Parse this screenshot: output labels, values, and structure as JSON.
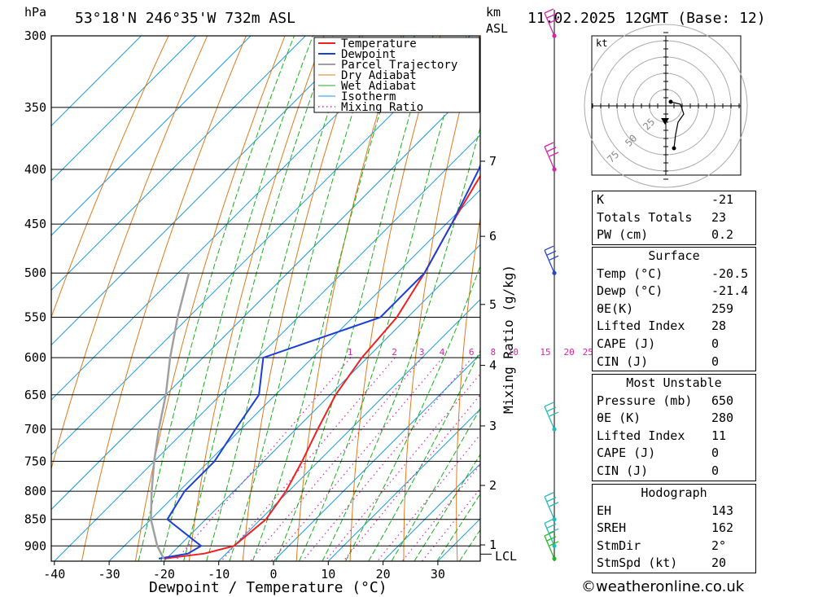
{
  "header": {
    "unit_hpa": "hPa",
    "location": "53°18'N 246°35'W 732m ASL",
    "unit_km": "km",
    "unit_asl": "ASL",
    "date": "11.02.2025 12GMT (Base: 12)"
  },
  "chart_data": {
    "type": "line",
    "subtype": "skew-T log-P sounding",
    "xlabel": "Dewpoint / Temperature (°C)",
    "ylabel_right": "Mixing Ratio (g/kg)",
    "x_ticks": [
      -40,
      -30,
      -20,
      -10,
      0,
      10,
      20,
      30
    ],
    "pressure_levels": [
      300,
      350,
      400,
      450,
      500,
      550,
      600,
      650,
      700,
      750,
      800,
      850,
      900
    ],
    "height_km_ticks": [
      {
        "km": "7",
        "p": 393
      },
      {
        "km": "6",
        "p": 462
      },
      {
        "km": "5",
        "p": 535
      },
      {
        "km": "4",
        "p": 610
      },
      {
        "km": "3",
        "p": 695
      },
      {
        "km": "2",
        "p": 790
      },
      {
        "km": "1",
        "p": 898
      }
    ],
    "lcl_label": "LCL",
    "lcl_pressure": 916,
    "mixing_ratio_labels": [
      "1",
      "2",
      "3",
      "4",
      "6",
      "8",
      "10",
      "15",
      "20",
      "25"
    ],
    "legend": [
      "Temperature",
      "Dewpoint",
      "Parcel Trajectory",
      "Dry Adiabat",
      "Wet Adiabat",
      "Isotherm",
      "Mixing Ratio"
    ],
    "colors": {
      "temperature": "#ee2222",
      "dewpoint": "#1a3fd6",
      "parcel": "#a0a0a0",
      "dry_adiabat": "#e07a1a",
      "wet_adiabat": "#1ab01a",
      "isotherm": "#1a9ae0",
      "mixing_ratio": "#dd22aa",
      "wind": "#22bbbb"
    },
    "series": [
      {
        "name": "Temperature",
        "points": [
          [
            925,
            -20.5
          ],
          [
            915,
            -14
          ],
          [
            900,
            -10
          ],
          [
            850,
            -9
          ],
          [
            800,
            -10.5
          ],
          [
            750,
            -13
          ],
          [
            700,
            -16
          ],
          [
            650,
            -19
          ],
          [
            600,
            -21
          ],
          [
            550,
            -22
          ],
          [
            500,
            -25
          ],
          [
            450,
            -29
          ],
          [
            400,
            -33
          ],
          [
            350,
            -38
          ],
          [
            300,
            -43
          ]
        ]
      },
      {
        "name": "Dewpoint",
        "points": [
          [
            925,
            -21.4
          ],
          [
            915,
            -17
          ],
          [
            900,
            -16
          ],
          [
            850,
            -27
          ],
          [
            800,
            -29
          ],
          [
            750,
            -29
          ],
          [
            700,
            -31
          ],
          [
            650,
            -33
          ],
          [
            600,
            -39
          ],
          [
            550,
            -25
          ],
          [
            500,
            -25
          ],
          [
            450,
            -29
          ],
          [
            400,
            -34
          ],
          [
            350,
            -41
          ],
          [
            300,
            -47
          ]
        ]
      },
      {
        "name": "Parcel Trajectory",
        "points": [
          [
            925,
            -20.5
          ],
          [
            900,
            -24
          ],
          [
            850,
            -30
          ],
          [
            800,
            -35
          ],
          [
            750,
            -40
          ],
          [
            700,
            -45
          ],
          [
            650,
            -50
          ],
          [
            600,
            -56
          ],
          [
            550,
            -62
          ],
          [
            500,
            -68
          ]
        ]
      }
    ]
  },
  "winds": [
    {
      "p": 300,
      "color": "#dd22aa"
    },
    {
      "p": 400,
      "color": "#dd22aa"
    },
    {
      "p": 500,
      "color": "#2244cc"
    },
    {
      "p": 700,
      "color": "#22bbbb"
    },
    {
      "p": 850,
      "color": "#22bbbb"
    },
    {
      "p": 900,
      "color": "#22bbbb"
    },
    {
      "p": 925,
      "color": "#22bb22"
    }
  ],
  "hodograph": {
    "unit": "kt",
    "ring_labels": [
      "25",
      "50",
      "75"
    ]
  },
  "indices": {
    "k_label": "K",
    "k_value": "-21",
    "tt_label": "Totals Totals",
    "tt_value": "23",
    "pw_label": "PW (cm)",
    "pw_value": "0.2"
  },
  "surface": {
    "title": "Surface",
    "temp_label": "Temp (°C)",
    "temp_value": "-20.5",
    "dewp_label": "Dewp (°C)",
    "dewp_value": "-21.4",
    "theta_label": "θE(K)",
    "theta_value": "259",
    "li_label": "Lifted Index",
    "li_value": "28",
    "cape_label": "CAPE (J)",
    "cape_value": "0",
    "cin_label": "CIN (J)",
    "cin_value": "0"
  },
  "most_unstable": {
    "title": "Most Unstable",
    "pressure_label": "Pressure (mb)",
    "pressure_value": "650",
    "theta_label": "θE (K)",
    "theta_value": "280",
    "li_label": "Lifted Index",
    "li_value": "11",
    "cape_label": "CAPE (J)",
    "cape_value": "0",
    "cin_label": "CIN (J)",
    "cin_value": "0"
  },
  "hodo_table": {
    "title": "Hodograph",
    "eh_label": "EH",
    "eh_value": "143",
    "sreh_label": "SREH",
    "sreh_value": "162",
    "stmdir_label": "StmDir",
    "stmdir_value": "2°",
    "stmspd_label": "StmSpd (kt)",
    "stmspd_value": "20"
  },
  "footer": {
    "copyright": "©weatheronline.co.uk"
  }
}
